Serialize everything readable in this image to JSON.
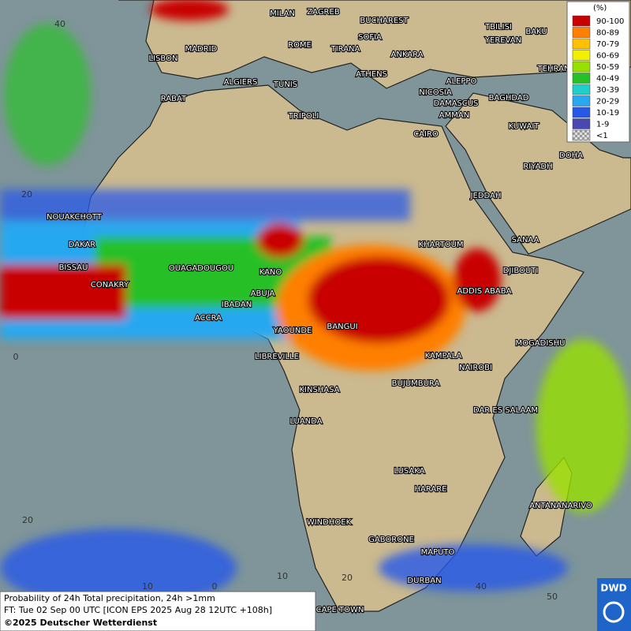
{
  "legend": {
    "unit": "(%)",
    "items": [
      {
        "label": "90-100",
        "color": "#c80000"
      },
      {
        "label": "80-89",
        "color": "#ff7f00"
      },
      {
        "label": "70-79",
        "color": "#ffc000"
      },
      {
        "label": "60-69",
        "color": "#f0f000"
      },
      {
        "label": "50-59",
        "color": "#98e000"
      },
      {
        "label": "40-49",
        "color": "#28c028"
      },
      {
        "label": "30-39",
        "color": "#20d0c8"
      },
      {
        "label": "20-29",
        "color": "#28a8f0"
      },
      {
        "label": "10-19",
        "color": "#2858e8"
      },
      {
        "label": "1-9",
        "color": "#4848b0"
      },
      {
        "label": "<1",
        "color": "#b8b8b8"
      }
    ]
  },
  "footer": {
    "line1": "Probability of 24h Total precipitation, 24h >1mm",
    "line2": "FT: Tue 02 Sep 00 UTC [ICON EPS 2025 Aug 28 12UTC +108h]",
    "line3": "©2025 Deutscher Wetterdienst"
  },
  "logo": "DWD",
  "grid_labels": [
    "40",
    "20",
    "0",
    "20",
    "10",
    "0",
    "10",
    "20",
    "40",
    "50"
  ],
  "cities": [
    "MILAN",
    "ZAGREB",
    "BUCHAREST",
    "TBILISI",
    "BAKU",
    "MADRID",
    "ROME",
    "SOFIA",
    "YEREVAN",
    "LISBON",
    "TIRANA",
    "ANKARA",
    "TEHRAN",
    "ALGIERS",
    "TUNIS",
    "ATHENS",
    "ALEPPO",
    "RABAT",
    "NICOSIA",
    "BAGHDAD",
    "DAMASCUS",
    "TRIPOLI",
    "AMMAN",
    "KUWAIT",
    "CAIRO",
    "DOHA",
    "RIYADH",
    "JEDDAH",
    "NOUAKCHOTT",
    "SANAA",
    "DAKAR",
    "KHARTOUM",
    "BISSAU",
    "OUAGADOUGOU",
    "KANO",
    "DJIBOUTI",
    "CONAKRY",
    "ABUJA",
    "ADDIS ABABA",
    "IBADAN",
    "ACCRA",
    "BANGUI",
    "YAOUNDE",
    "MOGADISHU",
    "KAMPALA",
    "LIBREVILLE",
    "NAIROBI",
    "KINSHASA",
    "BUJUMBURA",
    "DAR ES SALAAM",
    "LUANDA",
    "LUSAKA",
    "HARARE",
    "ANTANANARIVO",
    "WINDHOEK",
    "GABORONE",
    "MAPUTO",
    "DURBAN",
    "CAPE TOWN"
  ]
}
